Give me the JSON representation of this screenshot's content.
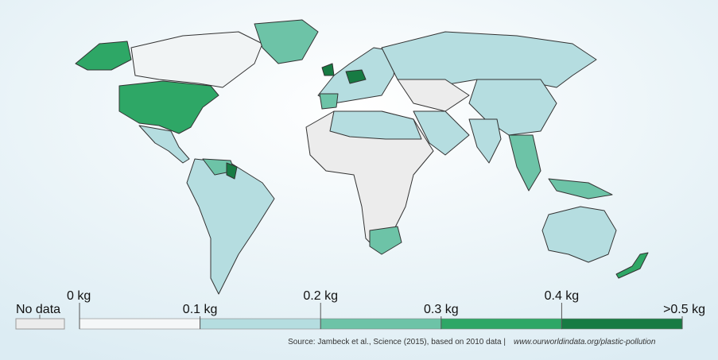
{
  "legend": {
    "no_data": {
      "label": "No data",
      "color": "#ececec"
    },
    "bins": [
      {
        "label": "0 kg",
        "color": "#f5f7f8"
      },
      {
        "label": "0.1 kg",
        "color": "#b5dde0"
      },
      {
        "label": "0.2 kg",
        "color": "#6dc3a7"
      },
      {
        "label": "0.3 kg",
        "color": "#2ea766"
      },
      {
        "label": "0.4 kg",
        "color": "#177b43"
      },
      {
        "label": ">0.5 kg"
      }
    ]
  },
  "source": "Source: Jambeck et al., Science (2015), based on 2010 data |",
  "url": "www.ourworldindata.org/plastic-pollution"
}
